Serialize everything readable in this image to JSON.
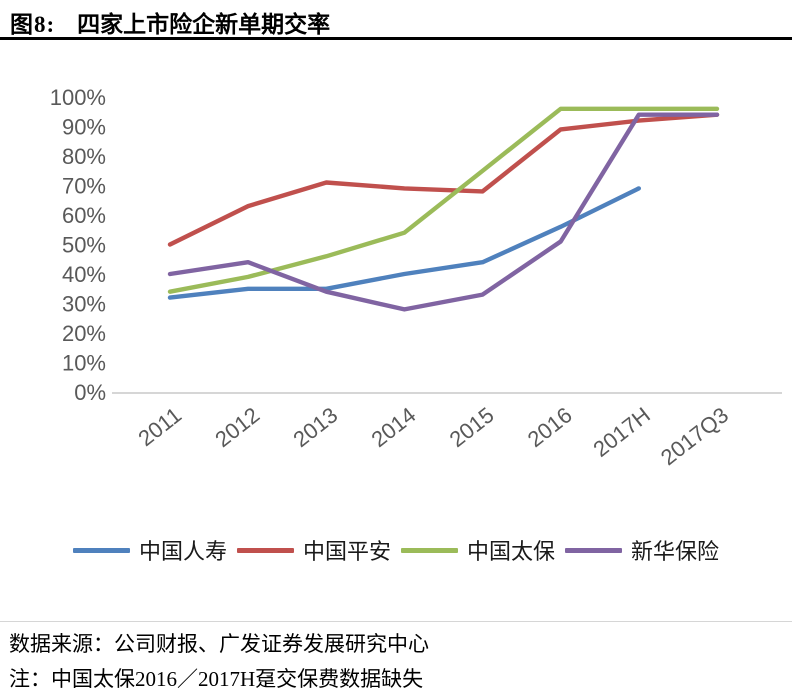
{
  "header": {
    "figure_label": "图8:",
    "title": "四家上市险企新单期交率"
  },
  "chart_data": {
    "type": "line",
    "title": "四家上市险企新单期交率",
    "categories": [
      "2011",
      "2012",
      "2013",
      "2014",
      "2015",
      "2016",
      "2017H",
      "2017Q3"
    ],
    "series": [
      {
        "name": "中国人寿",
        "color": "#4F81BD",
        "values": [
          32,
          35,
          35,
          40,
          44,
          56,
          69,
          null
        ]
      },
      {
        "name": "中国平安",
        "color": "#C0504D",
        "values": [
          50,
          63,
          71,
          69,
          68,
          89,
          92,
          94
        ]
      },
      {
        "name": "中国太保",
        "color": "#9BBB59",
        "values": [
          34,
          39,
          46,
          54,
          75,
          96,
          96,
          96
        ]
      },
      {
        "name": "新华保险",
        "color": "#8064A2",
        "values": [
          40,
          44,
          34,
          28,
          33,
          51,
          94,
          94
        ]
      }
    ],
    "ylim": [
      0,
      100
    ],
    "ytick_step": 10,
    "ytick_suffix": "%",
    "grid": false,
    "legend_position": "bottom",
    "axis_color": "#c9c9c9",
    "tick_label_color": "#595959"
  },
  "footer": {
    "source": "数据来源：公司财报、广发证券发展研究中心",
    "note": "注：中国太保2016／2017H趸交保费数据缺失"
  }
}
